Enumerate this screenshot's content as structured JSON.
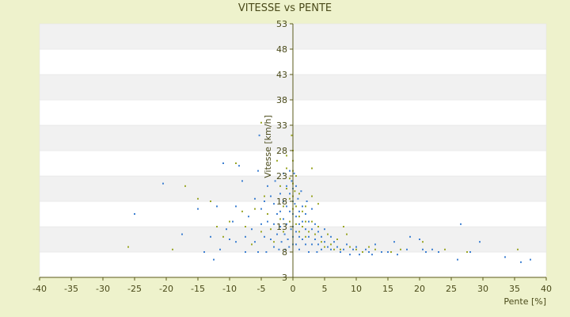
{
  "chart_data": {
    "type": "scatter",
    "title": "VITESSE vs PENTE",
    "xlabel": "Pente [%]",
    "ylabel": "Vitesse [km/h]",
    "xlim": [
      -40,
      40
    ],
    "ylim": [
      3,
      53
    ],
    "xticks": [
      -40,
      -35,
      -30,
      -25,
      -20,
      -15,
      -10,
      -5,
      0,
      5,
      10,
      15,
      20,
      25,
      30,
      35,
      40
    ],
    "yticks": [
      3,
      8,
      13,
      18,
      23,
      28,
      33,
      38,
      43,
      48,
      53
    ],
    "grid": "horizontal-bands",
    "colors": {
      "series_a": "#3d7fd1",
      "series_b": "#9aa626",
      "axis": "#5a5a1a",
      "band": "#f1f1f1",
      "plot": "#ffffff"
    },
    "series": [
      {
        "color_key": "series_a",
        "points": [
          [
            -25,
            15.5
          ],
          [
            -20.5,
            21.5
          ],
          [
            -17.5,
            11.5
          ],
          [
            -15,
            16.5
          ],
          [
            -14,
            8
          ],
          [
            -13,
            11
          ],
          [
            -12.5,
            6.5
          ],
          [
            -12,
            17
          ],
          [
            -11.5,
            8.5
          ],
          [
            -11,
            25.5
          ],
          [
            -10.5,
            12.5
          ],
          [
            -10,
            10.5
          ],
          [
            -9.5,
            14
          ],
          [
            -9,
            17
          ],
          [
            -9,
            10
          ],
          [
            -8.5,
            25
          ],
          [
            -8,
            22
          ],
          [
            -7.5,
            11
          ],
          [
            -7.5,
            8
          ],
          [
            -7,
            15
          ],
          [
            -6.5,
            12.5
          ],
          [
            -6,
            18.5
          ],
          [
            -6,
            10
          ],
          [
            -5.5,
            24
          ],
          [
            -5.5,
            8
          ],
          [
            -5.3,
            31
          ],
          [
            -5,
            13.5
          ],
          [
            -5,
            16.5
          ],
          [
            -4.5,
            18
          ],
          [
            -4.5,
            11
          ],
          [
            -4.2,
            8
          ],
          [
            -4,
            21
          ],
          [
            -4,
            14
          ],
          [
            -3.5,
            19
          ],
          [
            -3.5,
            10.5
          ],
          [
            -3,
            17.5
          ],
          [
            -3,
            13.5
          ],
          [
            -3,
            9
          ],
          [
            -2.8,
            22
          ],
          [
            -2.5,
            15.5
          ],
          [
            -2.5,
            11.5
          ],
          [
            -2.2,
            8.5
          ],
          [
            -2,
            19.5
          ],
          [
            -2,
            16
          ],
          [
            -2,
            13
          ],
          [
            -1.8,
            10
          ],
          [
            -1.5,
            23.5
          ],
          [
            -1.5,
            18
          ],
          [
            -1.5,
            14.5
          ],
          [
            -1.3,
            11.5
          ],
          [
            -1.2,
            8.5
          ],
          [
            -1,
            21
          ],
          [
            -1,
            17
          ],
          [
            -1,
            13.5
          ],
          [
            -0.8,
            10.5
          ],
          [
            -0.6,
            9
          ],
          [
            -0.5,
            24
          ],
          [
            -0.5,
            19.5
          ],
          [
            -0.5,
            16
          ],
          [
            -0.3,
            12.5
          ],
          [
            -0.2,
            22
          ],
          [
            0,
            20.5
          ],
          [
            0,
            18
          ],
          [
            0,
            15.5
          ],
          [
            0,
            13
          ],
          [
            0,
            11
          ],
          [
            0,
            9.5
          ],
          [
            0.2,
            23.5
          ],
          [
            0.3,
            17.5
          ],
          [
            0.5,
            21
          ],
          [
            0.5,
            15
          ],
          [
            0.5,
            12
          ],
          [
            0.5,
            9.5
          ],
          [
            0.8,
            18.5
          ],
          [
            1,
            16
          ],
          [
            1,
            13.5
          ],
          [
            1,
            11
          ],
          [
            1,
            8.5
          ],
          [
            1.3,
            20
          ],
          [
            1.5,
            17
          ],
          [
            1.5,
            14
          ],
          [
            1.5,
            10.5
          ],
          [
            2,
            15.5
          ],
          [
            2,
            12.5
          ],
          [
            2,
            9.5
          ],
          [
            2.2,
            18
          ],
          [
            2.5,
            14
          ],
          [
            2.5,
            11
          ],
          [
            2.5,
            8
          ],
          [
            3,
            16.5
          ],
          [
            3,
            12.5
          ],
          [
            3,
            9.5
          ],
          [
            3.5,
            13.5
          ],
          [
            3.5,
            10.5
          ],
          [
            3.8,
            8
          ],
          [
            4,
            12
          ],
          [
            4,
            9.5
          ],
          [
            4.5,
            11
          ],
          [
            4.5,
            8.5
          ],
          [
            5,
            12.5
          ],
          [
            5,
            10
          ],
          [
            5.5,
            9
          ],
          [
            6,
            11
          ],
          [
            6,
            8.5
          ],
          [
            6.5,
            10
          ],
          [
            7,
            9
          ],
          [
            7.5,
            8
          ],
          [
            8,
            8.5
          ],
          [
            8.5,
            9.5
          ],
          [
            9,
            7.5
          ],
          [
            9.5,
            8.5
          ],
          [
            10,
            9
          ],
          [
            10.5,
            7.5
          ],
          [
            11,
            8
          ],
          [
            11.5,
            8.5
          ],
          [
            12,
            8
          ],
          [
            12.5,
            7.5
          ],
          [
            13,
            9.5
          ],
          [
            14,
            8
          ],
          [
            15,
            8
          ],
          [
            16,
            10
          ],
          [
            16.5,
            7.5
          ],
          [
            18,
            8.5
          ],
          [
            18.5,
            11
          ],
          [
            20,
            10.5
          ],
          [
            20.5,
            8.5
          ],
          [
            21,
            8
          ],
          [
            22,
            8.5
          ],
          [
            23,
            8
          ],
          [
            26,
            6.5
          ],
          [
            26.5,
            13.5
          ],
          [
            28,
            8
          ],
          [
            29.5,
            10
          ],
          [
            33.5,
            7
          ],
          [
            36,
            6
          ],
          [
            37.5,
            6.5
          ]
        ]
      },
      {
        "color_key": "series_b",
        "points": [
          [
            -26,
            9
          ],
          [
            -19,
            8.5
          ],
          [
            -17,
            21
          ],
          [
            -15,
            18.5
          ],
          [
            -13,
            18
          ],
          [
            -12,
            13
          ],
          [
            -11,
            11
          ],
          [
            -10,
            14
          ],
          [
            -9,
            25.5
          ],
          [
            -8,
            16
          ],
          [
            -7.5,
            13
          ],
          [
            -6.5,
            9.5
          ],
          [
            -6,
            16.5
          ],
          [
            -5,
            12
          ],
          [
            -5,
            33.5
          ],
          [
            -4.5,
            19
          ],
          [
            -4,
            15.5
          ],
          [
            -3.5,
            12.5
          ],
          [
            -3,
            10
          ],
          [
            -2.5,
            26
          ],
          [
            -2,
            21
          ],
          [
            -2,
            14.5
          ],
          [
            -1.5,
            17
          ],
          [
            -1.5,
            12
          ],
          [
            -1,
            27
          ],
          [
            -1,
            24.5
          ],
          [
            -1,
            20.5
          ],
          [
            -0.5,
            22.5
          ],
          [
            -0.5,
            18.5
          ],
          [
            -0.5,
            14
          ],
          [
            -0.2,
            31
          ],
          [
            0,
            28
          ],
          [
            0,
            26
          ],
          [
            0,
            24
          ],
          [
            0,
            21.5
          ],
          [
            0,
            19
          ],
          [
            0,
            16.5
          ],
          [
            0.3,
            20
          ],
          [
            0.5,
            23
          ],
          [
            0.5,
            17
          ],
          [
            0.5,
            13.5
          ],
          [
            1,
            19.5
          ],
          [
            1,
            15
          ],
          [
            1,
            12
          ],
          [
            1.5,
            16
          ],
          [
            1.5,
            13
          ],
          [
            2,
            17
          ],
          [
            2,
            14
          ],
          [
            2,
            11
          ],
          [
            2.5,
            12
          ],
          [
            3,
            24.5
          ],
          [
            3,
            19
          ],
          [
            3,
            14
          ],
          [
            3.5,
            11.5
          ],
          [
            4,
            17.5
          ],
          [
            4,
            13
          ],
          [
            4.5,
            10
          ],
          [
            5,
            9
          ],
          [
            5.5,
            11.5
          ],
          [
            6,
            9.5
          ],
          [
            6.5,
            8.5
          ],
          [
            7,
            10.5
          ],
          [
            7.5,
            8.5
          ],
          [
            8,
            13
          ],
          [
            8.5,
            11.5
          ],
          [
            9,
            9
          ],
          [
            10,
            8.5
          ],
          [
            11,
            8
          ],
          [
            12,
            9
          ],
          [
            13,
            8.5
          ],
          [
            15.5,
            8
          ],
          [
            17,
            8.5
          ],
          [
            20.5,
            10
          ],
          [
            24,
            8.5
          ],
          [
            27.5,
            8
          ],
          [
            35.5,
            8.5
          ]
        ]
      }
    ]
  }
}
